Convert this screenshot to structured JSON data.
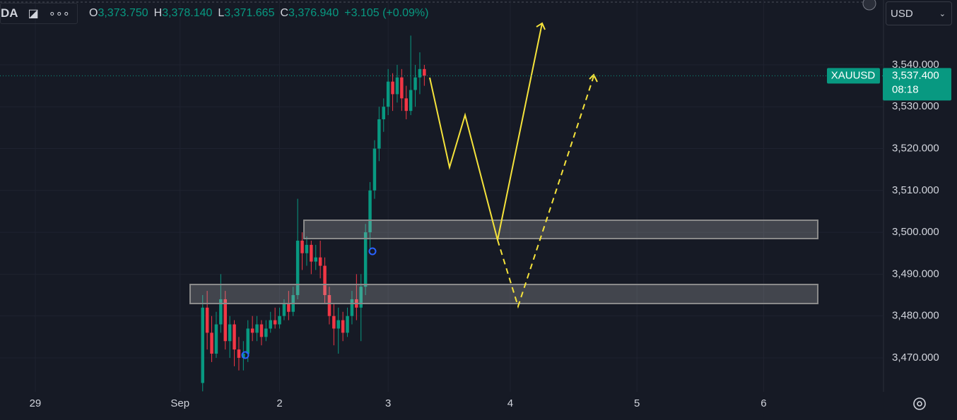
{
  "header": {
    "symbol": "DA",
    "ohlc": [
      {
        "key": "O",
        "value": "3,373.750"
      },
      {
        "key": "H",
        "value": "3,378.140"
      },
      {
        "key": "L",
        "value": "3,371.665"
      },
      {
        "key": "C",
        "value": "3,376.940"
      }
    ],
    "change": "+3.105 (+0.09%)"
  },
  "currency": "USD",
  "chart_data": {
    "type": "candlestick",
    "symbol_label": "XAUUSD",
    "countdown": "08:18",
    "last_price": {
      "value": 3537.4,
      "label": "3,537.400"
    },
    "x": [
      0,
      1,
      2,
      3,
      4,
      5,
      6,
      7,
      8,
      9,
      10,
      11,
      12,
      13,
      14,
      15,
      16,
      17,
      18,
      19,
      20,
      21,
      22,
      23,
      24,
      25,
      26,
      27,
      28,
      29,
      30,
      31,
      32,
      33,
      34,
      35,
      36,
      37,
      38,
      39,
      40,
      41,
      42,
      43,
      44,
      45,
      46,
      47,
      48,
      49
    ],
    "open": [
      3464,
      3482,
      3476,
      3471,
      3478,
      3484,
      3474,
      3478,
      3472,
      3470,
      3471,
      3477,
      3476,
      3478,
      3475,
      3477,
      3479,
      3478,
      3480,
      3483,
      3481,
      3485,
      3498,
      3495,
      3497,
      3493,
      3494,
      3492,
      3485,
      3480,
      3477,
      3479,
      3476,
      3480,
      3484,
      3482,
      3487,
      3500,
      3510,
      3520,
      3527,
      3530,
      3536,
      3533,
      3537,
      3532,
      3529,
      3534,
      3537,
      3539
    ],
    "high": [
      3485,
      3486,
      3480,
      3481,
      3490,
      3486,
      3480,
      3479,
      3475,
      3474,
      3479,
      3480,
      3480,
      3479,
      3479,
      3481,
      3482,
      3482,
      3484,
      3486,
      3487,
      3508,
      3500,
      3499,
      3498,
      3497,
      3498,
      3494,
      3487,
      3483,
      3482,
      3481,
      3482,
      3486,
      3490,
      3490,
      3502,
      3512,
      3522,
      3530,
      3532,
      3539,
      3538,
      3540,
      3539,
      3535,
      3547,
      3540,
      3543,
      3540
    ],
    "low": [
      3462,
      3472,
      3469,
      3470,
      3476,
      3472,
      3470,
      3468,
      3467,
      3467,
      3469,
      3474,
      3474,
      3473,
      3474,
      3476,
      3477,
      3477,
      3479,
      3479,
      3480,
      3484,
      3491,
      3492,
      3490,
      3491,
      3489,
      3483,
      3478,
      3473,
      3471,
      3474,
      3475,
      3478,
      3479,
      3474,
      3485,
      3496,
      3508,
      3517,
      3524,
      3528,
      3529,
      3531,
      3529,
      3527,
      3528,
      3530,
      3533,
      3535
    ],
    "close": [
      3482,
      3476,
      3471,
      3478,
      3484,
      3474,
      3478,
      3472,
      3470,
      3471,
      3477,
      3476,
      3478,
      3475,
      3477,
      3479,
      3478,
      3480,
      3483,
      3481,
      3485,
      3498,
      3495,
      3497,
      3493,
      3494,
      3492,
      3485,
      3480,
      3477,
      3479,
      3476,
      3480,
      3484,
      3482,
      3487,
      3500,
      3510,
      3520,
      3527,
      3530,
      3536,
      3533,
      3537,
      3532,
      3529,
      3534,
      3537,
      3539,
      3537.4
    ],
    "xlim": [
      -44.8,
      150.5
    ],
    "xticks": [
      {
        "value": -37,
        "label": "29"
      },
      {
        "value": -5,
        "label": "Sep"
      },
      {
        "value": 17,
        "label": "2"
      },
      {
        "value": 41,
        "label": "3"
      },
      {
        "value": 68,
        "label": "4"
      },
      {
        "value": 96,
        "label": "5"
      },
      {
        "value": 124,
        "label": "6"
      }
    ],
    "ylim": [
      3461.9,
      3555.5
    ],
    "yticks": [
      {
        "value": 3470,
        "label": "3,470.000"
      },
      {
        "value": 3480,
        "label": "3,480.000"
      },
      {
        "value": 3490,
        "label": "3,490.000"
      },
      {
        "value": 3500,
        "label": "3,500.000"
      },
      {
        "value": 3510,
        "label": "3,510.000"
      },
      {
        "value": 3520,
        "label": "3,520.000"
      },
      {
        "value": 3530,
        "label": "3,530.000"
      },
      {
        "value": 3540,
        "label": "3,540.000"
      }
    ],
    "grid": true,
    "up_color": "#089981",
    "down_color": "#f23645"
  }
}
